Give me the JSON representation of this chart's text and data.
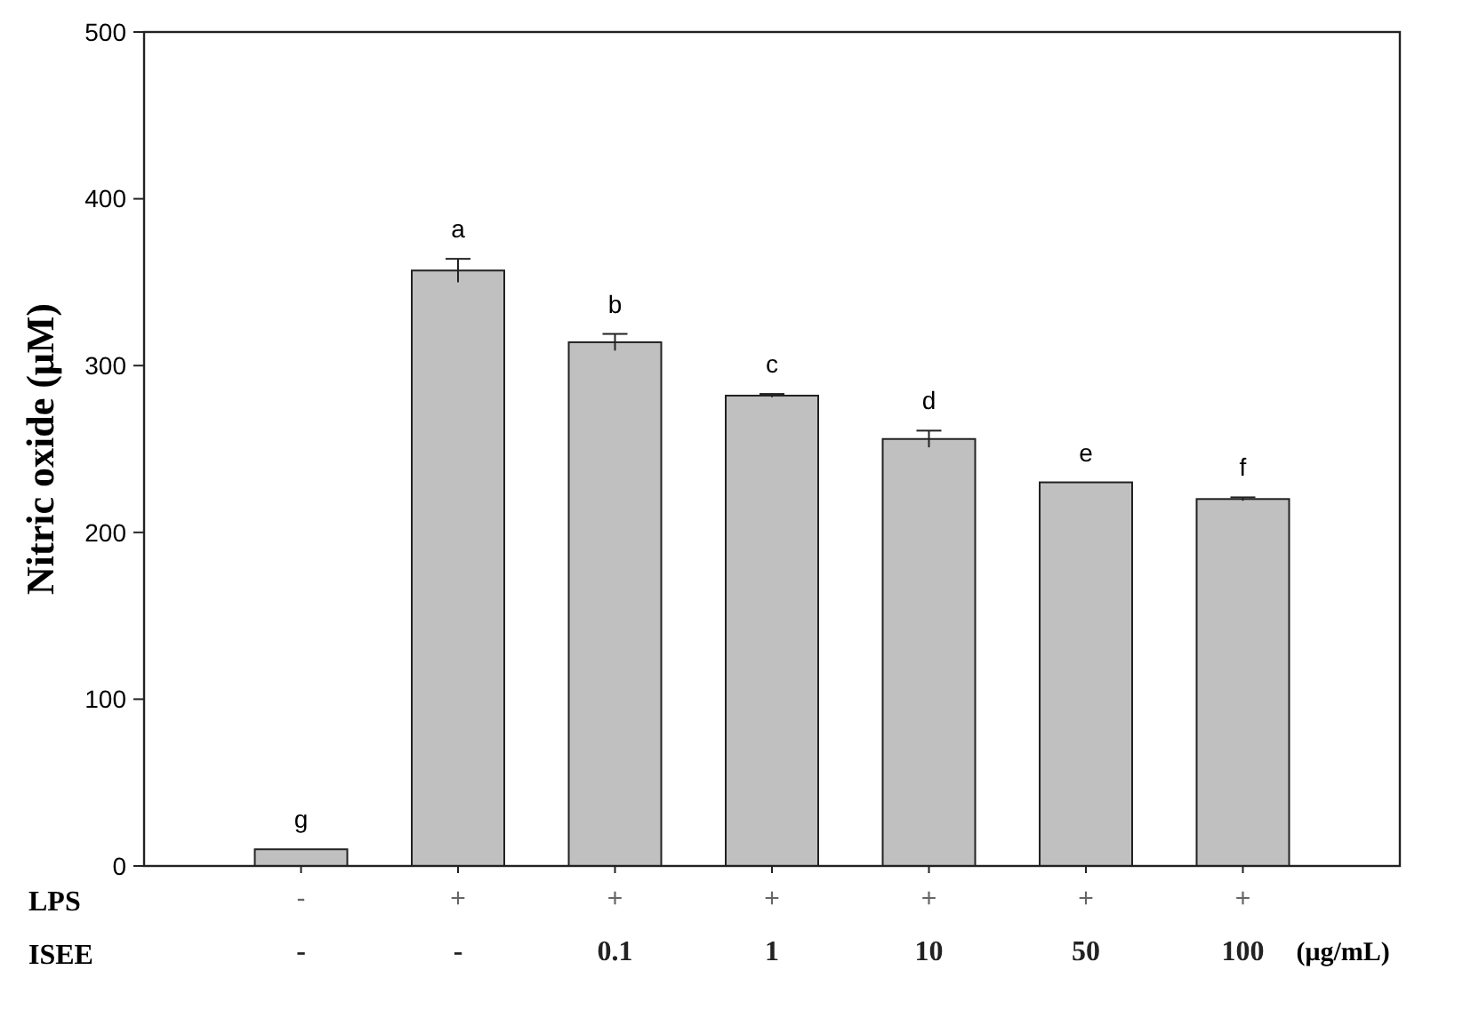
{
  "chart_data": {
    "type": "bar",
    "categories": [
      "-\n-",
      "+\n-",
      "+\n0.1",
      "+\n1",
      "+\n10",
      "+\n50",
      "+\n100"
    ],
    "values": [
      10,
      357,
      314,
      282,
      256,
      230,
      220
    ],
    "errors": [
      null,
      7,
      5,
      1,
      5,
      null,
      1
    ],
    "value_labels": [
      "g",
      "a",
      "b",
      "c",
      "d",
      "e",
      "f"
    ],
    "color": "#c0c0c0",
    "ylabel": "Nitric oxide (μM)",
    "xlabel": "(μg/mL)",
    "annotations": [
      "LPS",
      "ISEE"
    ],
    "ylim": [
      0,
      500
    ],
    "yticks": [
      0,
      100,
      200,
      300,
      400,
      500
    ],
    "grid": false
  }
}
